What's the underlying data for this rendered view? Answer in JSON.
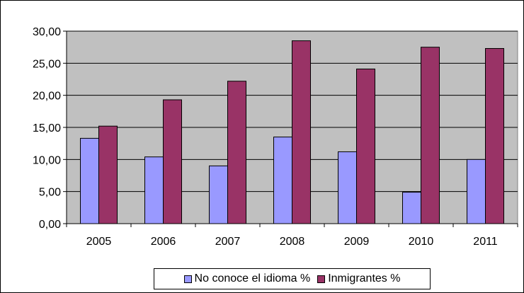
{
  "chart_data": {
    "type": "bar",
    "categories": [
      "2005",
      "2006",
      "2007",
      "2008",
      "2009",
      "2010",
      "2011"
    ],
    "series": [
      {
        "name": "No conoce el idioma %",
        "color": "#9999ff",
        "values": [
          13.3,
          10.4,
          9.0,
          13.5,
          11.2,
          4.9,
          10.0
        ]
      },
      {
        "name": "Inmigrantes %",
        "color": "#993366",
        "values": [
          15.2,
          19.3,
          22.2,
          28.5,
          24.1,
          27.5,
          27.3
        ]
      }
    ],
    "y_ticks": [
      "0,00",
      "5,00",
      "10,00",
      "15,00",
      "20,00",
      "25,00",
      "30,00"
    ],
    "ylim": [
      0,
      30
    ],
    "grid": true,
    "plot_background": "#c0c0c0",
    "legend_position": "bottom"
  }
}
